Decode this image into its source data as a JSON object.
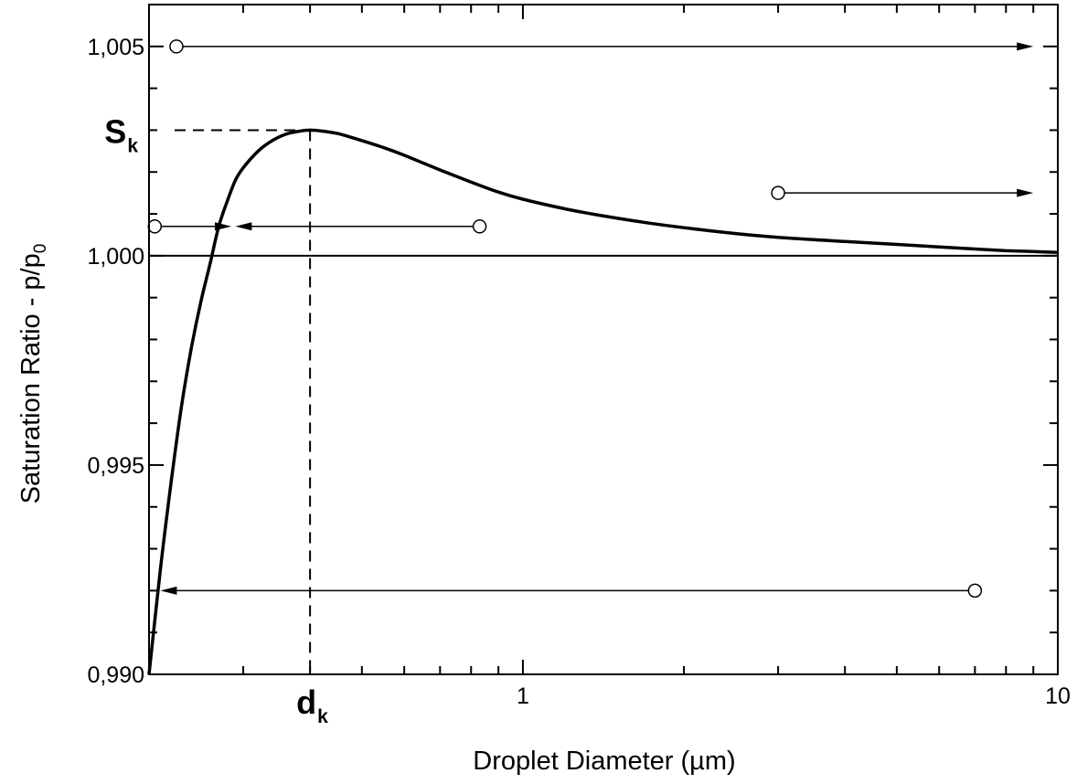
{
  "chart_data": {
    "type": "line",
    "xlabel": "Droplet Diameter (µm)",
    "ylabel": {
      "prefix": "Saturation Ratio - p/p",
      "subscript": "0"
    },
    "x_scale": "log",
    "xlim": [
      0.2,
      10
    ],
    "ylim": [
      0.99,
      1.006
    ],
    "grid": false,
    "x_tick_labels": [
      {
        "value": 1,
        "label": "1"
      },
      {
        "value": 10,
        "label": "10"
      }
    ],
    "y_tick_labels": [
      {
        "value": 1.005,
        "label": "1,005"
      },
      {
        "value": 1.0,
        "label": "1,000"
      },
      {
        "value": 0.995,
        "label": "0,995"
      },
      {
        "value": 0.99,
        "label": "0,990"
      }
    ],
    "curve": {
      "x": [
        0.2,
        0.21,
        0.22,
        0.23,
        0.24,
        0.25,
        0.26,
        0.27,
        0.28,
        0.29,
        0.3,
        0.32,
        0.34,
        0.36,
        0.38,
        0.4,
        0.42,
        0.45,
        0.48,
        0.5,
        0.55,
        0.6,
        0.7,
        0.8,
        0.9,
        1.0,
        1.2,
        1.4,
        1.7,
        2.0,
        2.5,
        3.0,
        4.0,
        5.0,
        6.0,
        7.0,
        8.0,
        9.0,
        10.0
      ],
      "y": [
        0.99,
        0.9925,
        0.9946,
        0.9964,
        0.9978,
        0.9989,
        0.9998,
        1.0007,
        1.0013,
        1.0018,
        1.0021,
        1.0025,
        1.00275,
        1.0029,
        1.00297,
        1.003,
        1.00298,
        1.00292,
        1.00282,
        1.00275,
        1.00258,
        1.0024,
        1.00205,
        1.00176,
        1.00152,
        1.00135,
        1.00112,
        1.00096,
        1.00079,
        1.00067,
        1.00053,
        1.00044,
        1.00034,
        1.00027,
        1.00021,
        1.00016,
        1.00012,
        1.0001,
        1.00008
      ]
    },
    "reference_line": {
      "y": 1.0
    },
    "critical_point": {
      "x": 0.4,
      "y": 1.003,
      "s_label": "S",
      "s_subscript": "k",
      "d_label": "d",
      "d_subscript": "k"
    },
    "arrows": [
      {
        "start_x": 0.225,
        "end_x": 9.0,
        "y": 1.005
      },
      {
        "start_x": 3.0,
        "end_x": 9.0,
        "y": 1.0015
      },
      {
        "start_x": 0.205,
        "end_x": 0.285,
        "y": 1.0007
      },
      {
        "start_x": 0.83,
        "end_x": 0.29,
        "y": 1.0007
      },
      {
        "start_x": 7.0,
        "end_x": 0.21,
        "y": 0.992
      }
    ]
  }
}
